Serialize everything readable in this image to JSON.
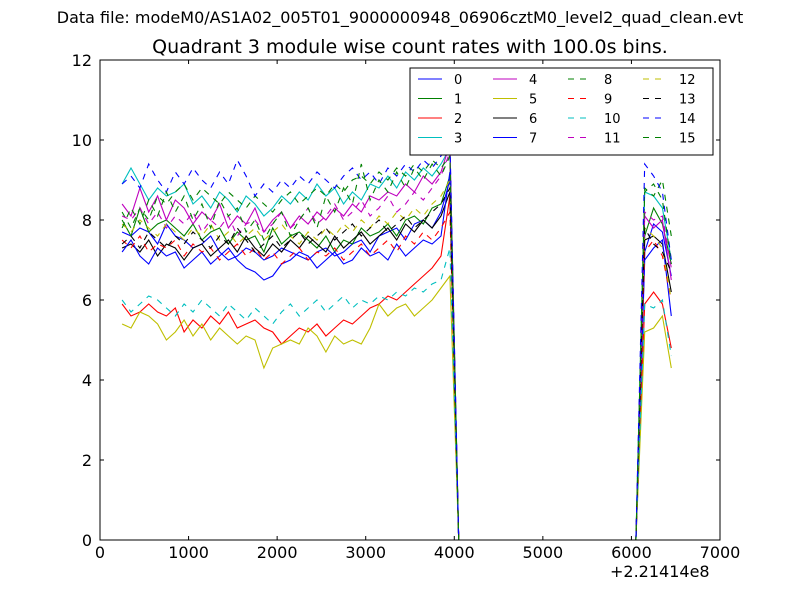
{
  "suptitle": "Data file: modeM0/AS1A02_005T01_9000000948_06906cztM0_level2_quad_clean.evt",
  "chart_data": {
    "type": "line",
    "title": "Quadrant 3 module wise count rates with 100.0s bins.",
    "xlabel": "",
    "ylabel": "",
    "x_offset_label": "+2.21414e8",
    "xlim": [
      0,
      7000
    ],
    "ylim": [
      0,
      12
    ],
    "x_ticks": [
      0,
      1000,
      2000,
      3000,
      4000,
      5000,
      6000,
      7000
    ],
    "y_ticks": [
      0,
      2,
      4,
      6,
      8,
      10,
      12
    ],
    "grid": false,
    "legend": "top-right",
    "x": [
      250,
      350,
      450,
      550,
      650,
      750,
      850,
      950,
      1050,
      1150,
      1250,
      1350,
      1450,
      1550,
      1650,
      1750,
      1850,
      1950,
      2050,
      2150,
      2250,
      2350,
      2450,
      2550,
      2650,
      2750,
      2850,
      2950,
      3050,
      3150,
      3250,
      3350,
      3450,
      3550,
      3650,
      3750,
      3850,
      3950,
      4050,
      4150,
      4250,
      4350,
      4450,
      4550,
      4650,
      4750,
      4850,
      4950,
      5050,
      5150,
      5250,
      5350,
      5450,
      5550,
      5650,
      5750,
      5850,
      5950,
      6050,
      6150,
      6250,
      6350,
      6450
    ],
    "series": [
      {
        "name": "0",
        "color": "#0000ff",
        "dash": "solid",
        "values": [
          7.7,
          7.6,
          7.8,
          7.7,
          7.4,
          7.9,
          7.6,
          7.5,
          7.3,
          7.4,
          7.6,
          7.2,
          7.0,
          7.1,
          7.3,
          7.2,
          7.0,
          7.1,
          7.3,
          7.2,
          7.1,
          7.0,
          7.2,
          7.3,
          7.1,
          7.2,
          7.4,
          7.5,
          7.2,
          7.6,
          7.7,
          7.8,
          7.5,
          7.9,
          8.0,
          7.8,
          8.2,
          9.0,
          0,
          0,
          0,
          0,
          0,
          0,
          0,
          0,
          0,
          0,
          0,
          0,
          0,
          0,
          0,
          0,
          0,
          0,
          0,
          0,
          0,
          7.2,
          7.9,
          7.7,
          6.6
        ]
      },
      {
        "name": "1",
        "color": "#008000",
        "dash": "solid",
        "values": [
          8.0,
          7.6,
          8.3,
          7.7,
          7.9,
          8.0,
          7.8,
          7.6,
          7.9,
          7.5,
          7.7,
          7.8,
          7.4,
          7.7,
          7.5,
          7.6,
          7.2,
          7.8,
          7.4,
          7.6,
          7.7,
          7.5,
          7.3,
          7.6,
          7.2,
          7.5,
          7.4,
          7.8,
          7.6,
          7.7,
          7.9,
          7.6,
          8.0,
          8.1,
          7.9,
          8.3,
          8.4,
          9.1,
          0,
          0,
          0,
          0,
          0,
          0,
          0,
          0,
          0,
          0,
          0,
          0,
          0,
          0,
          0,
          0,
          0,
          0,
          0,
          0,
          0,
          7.6,
          8.3,
          7.9,
          6.9
        ]
      },
      {
        "name": "2",
        "color": "#ff0000",
        "dash": "solid",
        "values": [
          5.9,
          5.6,
          5.7,
          5.9,
          5.7,
          5.6,
          5.8,
          5.2,
          5.5,
          5.3,
          5.6,
          5.4,
          5.7,
          5.3,
          5.4,
          5.5,
          5.3,
          5.2,
          4.9,
          5.1,
          5.3,
          5.2,
          5.4,
          5.1,
          5.3,
          5.5,
          5.4,
          5.6,
          5.8,
          5.9,
          6.1,
          6.0,
          6.2,
          6.4,
          6.6,
          6.8,
          7.1,
          8.6,
          0,
          0,
          0,
          0,
          0,
          0,
          0,
          0,
          0,
          0,
          0,
          0,
          0,
          0,
          0,
          0,
          0,
          0,
          0,
          0,
          0,
          5.9,
          6.2,
          5.9,
          4.8
        ]
      },
      {
        "name": "3",
        "color": "#00bfbf",
        "dash": "solid",
        "values": [
          8.9,
          9.3,
          8.9,
          8.5,
          8.8,
          8.6,
          8.7,
          8.9,
          8.4,
          8.6,
          8.3,
          8.7,
          8.5,
          8.2,
          8.6,
          8.4,
          8.1,
          8.3,
          8.6,
          8.4,
          8.7,
          8.5,
          8.9,
          8.6,
          8.8,
          8.4,
          8.7,
          8.5,
          8.9,
          8.8,
          9.1,
          8.8,
          9.2,
          9.0,
          9.3,
          9.1,
          9.4,
          9.8,
          0,
          0,
          0,
          0,
          0,
          0,
          0,
          0,
          0,
          0,
          0,
          0,
          0,
          0,
          0,
          0,
          0,
          0,
          0,
          0,
          0,
          8.7,
          8.6,
          8.3,
          7.0
        ]
      },
      {
        "name": "4",
        "color": "#bf00bf",
        "dash": "solid",
        "values": [
          8.4,
          8.1,
          8.8,
          8.2,
          8.6,
          8.0,
          8.5,
          8.3,
          7.9,
          8.2,
          8.0,
          8.4,
          7.8,
          8.1,
          7.9,
          8.3,
          7.7,
          8.0,
          8.2,
          7.8,
          8.1,
          7.9,
          8.2,
          8.0,
          8.3,
          8.1,
          8.4,
          8.2,
          8.6,
          8.5,
          8.7,
          8.6,
          8.9,
          8.7,
          9.1,
          8.9,
          9.2,
          9.9,
          0,
          0,
          0,
          0,
          0,
          0,
          0,
          0,
          0,
          0,
          0,
          0,
          0,
          0,
          0,
          0,
          0,
          0,
          0,
          0,
          0,
          8.1,
          7.8,
          8.0,
          6.5
        ]
      },
      {
        "name": "5",
        "color": "#bfbf00",
        "dash": "solid",
        "values": [
          5.4,
          5.3,
          5.7,
          5.6,
          5.4,
          5.0,
          5.2,
          5.5,
          5.1,
          5.4,
          5.0,
          5.3,
          5.1,
          4.9,
          5.1,
          5.0,
          4.3,
          4.8,
          4.9,
          5.0,
          4.9,
          5.3,
          5.1,
          4.7,
          5.1,
          4.9,
          5.0,
          4.9,
          5.3,
          5.9,
          5.6,
          5.8,
          5.9,
          5.6,
          5.8,
          6.0,
          6.3,
          6.6,
          0,
          0,
          0,
          0,
          0,
          0,
          0,
          0,
          0,
          0,
          0,
          0,
          0,
          0,
          0,
          0,
          0,
          0,
          0,
          0,
          0,
          5.2,
          5.3,
          5.6,
          4.3
        ]
      },
      {
        "name": "6",
        "color": "#000000",
        "dash": "solid",
        "values": [
          7.3,
          7.4,
          7.2,
          7.5,
          7.1,
          7.4,
          7.3,
          7.0,
          7.3,
          7.4,
          7.1,
          7.3,
          7.5,
          7.2,
          7.6,
          7.3,
          7.1,
          7.4,
          7.2,
          7.5,
          7.3,
          7.6,
          7.4,
          7.2,
          7.6,
          7.3,
          7.5,
          7.7,
          7.4,
          7.6,
          7.8,
          7.5,
          7.9,
          7.7,
          8.0,
          7.8,
          8.1,
          8.7,
          0,
          0,
          0,
          0,
          0,
          0,
          0,
          0,
          0,
          0,
          0,
          0,
          0,
          0,
          0,
          0,
          0,
          0,
          0,
          0,
          0,
          7.5,
          7.6,
          7.4,
          6.2
        ]
      },
      {
        "name": "7",
        "color": "#0000ff",
        "dash": "solid",
        "values": [
          7.2,
          7.5,
          7.1,
          6.9,
          7.3,
          7.1,
          7.2,
          6.8,
          7.0,
          7.2,
          6.9,
          7.1,
          7.3,
          7.0,
          6.8,
          6.7,
          6.5,
          6.6,
          6.9,
          7.0,
          7.2,
          7.1,
          6.8,
          7.0,
          7.2,
          6.9,
          7.0,
          7.3,
          7.1,
          7.2,
          7.0,
          7.4,
          7.1,
          7.3,
          7.5,
          7.4,
          7.6,
          9.2,
          0,
          0,
          0,
          0,
          0,
          0,
          0,
          0,
          0,
          0,
          0,
          0,
          0,
          0,
          0,
          0,
          0,
          0,
          0,
          0,
          0,
          7.0,
          7.3,
          7.5,
          5.6
        ]
      },
      {
        "name": "8",
        "color": "#008000",
        "dash": "dashed",
        "values": [
          8.2,
          7.8,
          8.3,
          8.0,
          8.6,
          8.4,
          8.7,
          8.9,
          8.5,
          8.8,
          8.6,
          8.4,
          8.7,
          8.5,
          8.3,
          8.6,
          8.4,
          8.2,
          8.5,
          8.7,
          8.4,
          8.6,
          8.8,
          8.6,
          8.9,
          8.7,
          9.0,
          9.1,
          8.9,
          9.2,
          9.0,
          9.3,
          9.1,
          9.4,
          9.2,
          9.5,
          9.3,
          9.6,
          0,
          0,
          0,
          0,
          0,
          0,
          0,
          0,
          0,
          0,
          0,
          0,
          0,
          0,
          0,
          0,
          0,
          0,
          0,
          0,
          0,
          8.8,
          8.6,
          9.0,
          7.6
        ]
      },
      {
        "name": "9",
        "color": "#ff0000",
        "dash": "dashed",
        "values": [
          7.5,
          7.3,
          7.6,
          7.2,
          7.4,
          7.3,
          7.5,
          7.1,
          7.4,
          7.2,
          7.3,
          7.0,
          7.2,
          7.4,
          7.1,
          7.3,
          7.0,
          7.2,
          6.9,
          7.1,
          7.3,
          7.0,
          7.2,
          7.1,
          7.3,
          7.0,
          7.2,
          7.4,
          7.1,
          7.3,
          7.5,
          7.2,
          7.6,
          7.4,
          7.7,
          7.5,
          7.8,
          8.2,
          0,
          0,
          0,
          0,
          0,
          0,
          0,
          0,
          0,
          0,
          0,
          0,
          0,
          0,
          0,
          0,
          0,
          0,
          0,
          0,
          0,
          7.2,
          7.5,
          7.1,
          6.0
        ]
      },
      {
        "name": "10",
        "color": "#00bfbf",
        "dash": "dashed",
        "values": [
          6.0,
          5.7,
          5.9,
          6.1,
          6.0,
          5.8,
          5.6,
          5.9,
          5.7,
          6.0,
          5.8,
          5.6,
          5.9,
          5.7,
          5.5,
          5.8,
          5.6,
          5.4,
          5.7,
          5.9,
          5.6,
          5.8,
          6.0,
          5.7,
          5.9,
          6.1,
          5.8,
          6.0,
          5.9,
          6.1,
          6.0,
          6.2,
          6.1,
          6.3,
          6.2,
          6.4,
          6.5,
          7.3,
          0,
          0,
          0,
          0,
          0,
          0,
          0,
          0,
          0,
          0,
          0,
          0,
          0,
          0,
          0,
          0,
          0,
          0,
          0,
          0,
          0,
          5.9,
          5.8,
          6.0,
          4.6
        ]
      },
      {
        "name": "11",
        "color": "#bf00bf",
        "dash": "dashed",
        "values": [
          8.1,
          8.0,
          8.3,
          7.9,
          8.2,
          7.8,
          8.1,
          7.9,
          8.2,
          7.7,
          8.0,
          7.8,
          8.1,
          7.6,
          7.9,
          8.0,
          7.7,
          7.9,
          8.2,
          7.8,
          8.0,
          8.3,
          7.9,
          8.1,
          8.4,
          8.0,
          8.2,
          8.5,
          8.1,
          8.3,
          8.6,
          8.2,
          8.4,
          8.7,
          8.5,
          8.8,
          9.1,
          9.7,
          0,
          0,
          0,
          0,
          0,
          0,
          0,
          0,
          0,
          0,
          0,
          0,
          0,
          0,
          0,
          0,
          0,
          0,
          0,
          0,
          0,
          8.2,
          8.0,
          8.1,
          6.8
        ]
      },
      {
        "name": "12",
        "color": "#bfbf00",
        "dash": "dashed",
        "values": [
          7.9,
          7.7,
          8.0,
          7.8,
          7.6,
          7.9,
          7.7,
          7.5,
          7.8,
          7.6,
          7.9,
          7.5,
          7.7,
          7.4,
          7.6,
          7.8,
          7.5,
          7.7,
          7.9,
          7.6,
          7.4,
          7.7,
          7.5,
          7.8,
          7.6,
          7.9,
          7.7,
          8.0,
          7.8,
          8.1,
          7.9,
          8.2,
          8.0,
          8.3,
          8.1,
          8.4,
          8.6,
          9.0,
          0,
          0,
          0,
          0,
          0,
          0,
          0,
          0,
          0,
          0,
          0,
          0,
          0,
          0,
          0,
          0,
          0,
          0,
          0,
          0,
          0,
          7.8,
          7.6,
          7.3,
          6.0
        ]
      },
      {
        "name": "13",
        "color": "#000000",
        "dash": "dashed",
        "values": [
          7.4,
          7.6,
          7.3,
          7.7,
          7.5,
          7.3,
          7.6,
          7.4,
          7.7,
          7.5,
          7.3,
          7.6,
          7.4,
          7.8,
          7.5,
          7.2,
          7.4,
          7.6,
          7.3,
          7.5,
          7.7,
          7.4,
          7.6,
          7.8,
          7.5,
          7.7,
          7.9,
          7.6,
          7.8,
          8.0,
          7.7,
          7.9,
          8.1,
          7.8,
          8.0,
          8.2,
          8.4,
          8.8,
          0,
          0,
          0,
          0,
          0,
          0,
          0,
          0,
          0,
          0,
          0,
          0,
          0,
          0,
          0,
          0,
          0,
          0,
          0,
          0,
          0,
          7.8,
          7.4,
          7.2,
          6.7
        ]
      },
      {
        "name": "14",
        "color": "#0000ff",
        "dash": "dashed",
        "values": [
          8.9,
          9.1,
          8.8,
          9.4,
          9.0,
          8.7,
          9.2,
          8.9,
          9.3,
          9.0,
          8.8,
          9.2,
          8.9,
          9.5,
          9.1,
          8.6,
          8.9,
          8.7,
          9.0,
          8.8,
          9.1,
          8.9,
          9.2,
          9.0,
          8.8,
          9.1,
          9.3,
          9.0,
          9.2,
          8.9,
          9.3,
          9.1,
          9.4,
          9.2,
          9.5,
          9.3,
          9.6,
          10.0,
          0,
          0,
          0,
          0,
          0,
          0,
          0,
          0,
          0,
          0,
          0,
          0,
          0,
          0,
          0,
          0,
          0,
          0,
          0,
          0,
          0,
          9.4,
          9.1,
          8.7,
          7.0
        ]
      },
      {
        "name": "15",
        "color": "#008000",
        "dash": "dashed",
        "values": [
          7.8,
          8.3,
          7.9,
          8.5,
          8.1,
          8.7,
          8.2,
          8.6,
          8.0,
          8.4,
          7.8,
          8.5,
          8.1,
          8.3,
          7.7,
          8.0,
          7.5,
          7.9,
          8.2,
          7.6,
          8.0,
          8.3,
          7.8,
          8.6,
          8.2,
          8.8,
          8.4,
          9.4,
          8.5,
          9.0,
          8.7,
          9.2,
          8.8,
          9.3,
          9.0,
          9.4,
          9.1,
          9.6,
          0,
          0,
          0,
          0,
          0,
          0,
          0,
          0,
          0,
          0,
          0,
          0,
          0,
          0,
          0,
          0,
          0,
          0,
          0,
          0,
          0,
          8.7,
          8.9,
          8.5,
          6.9
        ]
      }
    ]
  }
}
